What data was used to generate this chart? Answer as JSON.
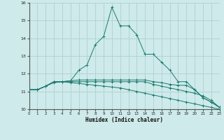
{
  "xlabel": "Humidex (Indice chaleur)",
  "bg_color": "#ceeaea",
  "grid_color": "#b0d0d0",
  "line_color": "#1a7a6e",
  "series": [
    [
      11.1,
      11.1,
      11.3,
      11.5,
      11.55,
      11.6,
      12.2,
      12.5,
      13.65,
      14.1,
      15.75,
      14.7,
      14.7,
      14.2,
      13.1,
      13.1,
      12.65,
      12.2,
      11.55,
      11.55,
      11.1,
      10.65,
      10.4,
      10.1
    ],
    [
      11.1,
      11.1,
      11.3,
      11.55,
      11.55,
      11.6,
      11.65,
      11.65,
      11.65,
      11.65,
      11.65,
      11.65,
      11.65,
      11.65,
      11.65,
      11.55,
      11.5,
      11.4,
      11.35,
      11.35,
      11.1,
      10.65,
      10.4,
      10.1
    ],
    [
      11.1,
      11.1,
      11.3,
      11.55,
      11.55,
      11.55,
      11.55,
      11.55,
      11.55,
      11.55,
      11.55,
      11.55,
      11.55,
      11.55,
      11.55,
      11.4,
      11.3,
      11.2,
      11.1,
      11.0,
      10.9,
      10.75,
      10.5,
      10.1
    ],
    [
      11.1,
      11.1,
      11.3,
      11.55,
      11.55,
      11.5,
      11.45,
      11.4,
      11.35,
      11.3,
      11.25,
      11.2,
      11.1,
      11.0,
      10.9,
      10.8,
      10.7,
      10.6,
      10.5,
      10.4,
      10.3,
      10.2,
      10.1,
      10.0
    ]
  ],
  "x_start": 0,
  "x_end": 23,
  "ylim": [
    10,
    16
  ],
  "ytick_min": 10,
  "ytick_max": 16,
  "xticks": [
    0,
    1,
    2,
    3,
    4,
    5,
    6,
    7,
    8,
    9,
    10,
    11,
    12,
    13,
    14,
    15,
    16,
    17,
    18,
    19,
    20,
    21,
    22,
    23
  ]
}
